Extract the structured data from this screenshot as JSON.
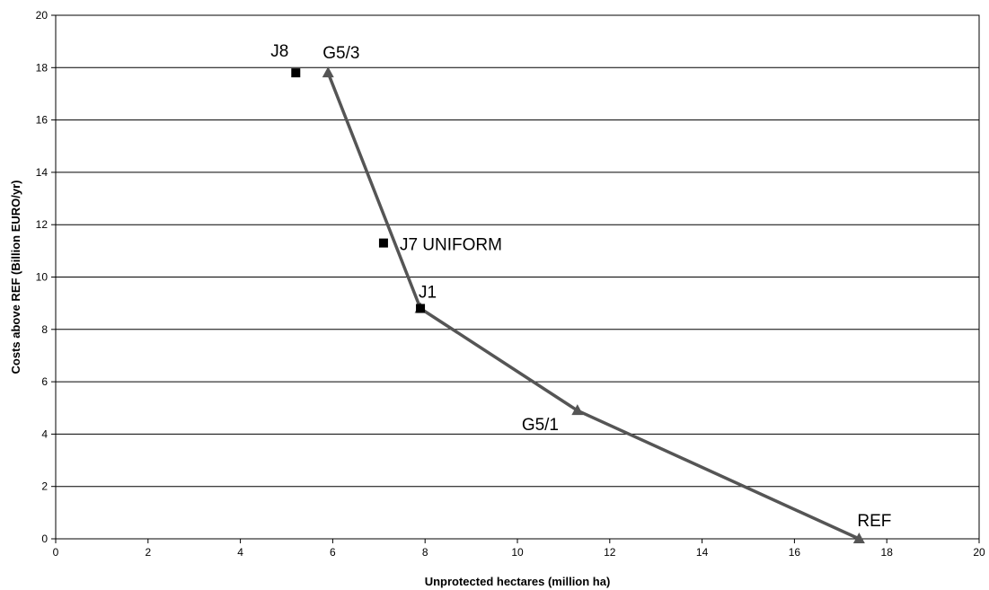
{
  "chart_data": {
    "type": "scatter",
    "title": "",
    "xlabel": "Unprotected hectares (million ha)",
    "ylabel": "Costs above REF (Billion EURO/yr)",
    "xlim": [
      0,
      20
    ],
    "ylim": [
      0,
      20
    ],
    "x_ticks": [
      "0",
      "2",
      "4",
      "6",
      "8",
      "10",
      "12",
      "14",
      "16",
      "18",
      "20"
    ],
    "y_ticks": [
      "0",
      "2",
      "4",
      "6",
      "8",
      "10",
      "12",
      "14",
      "16",
      "18",
      "20"
    ],
    "grid": "horizontal",
    "legend": "none",
    "series": [
      {
        "marker": "triangle",
        "line": true,
        "color": "#555555",
        "points": [
          {
            "label": "G5/3",
            "x": 5.9,
            "y": 17.8
          },
          {
            "label": "J1",
            "x": 7.9,
            "y": 8.8
          },
          {
            "label": "G5/1",
            "x": 11.3,
            "y": 4.9
          },
          {
            "label": "REF",
            "x": 17.4,
            "y": 0
          }
        ]
      },
      {
        "marker": "square",
        "line": false,
        "color": "#000000",
        "points": [
          {
            "label": "J8",
            "x": 5.2,
            "y": 17.8
          },
          {
            "label": "J7 UNIFORM",
            "x": 7.1,
            "y": 11.3
          },
          {
            "label": "J1",
            "x": 7.9,
            "y": 8.8
          }
        ]
      }
    ]
  }
}
